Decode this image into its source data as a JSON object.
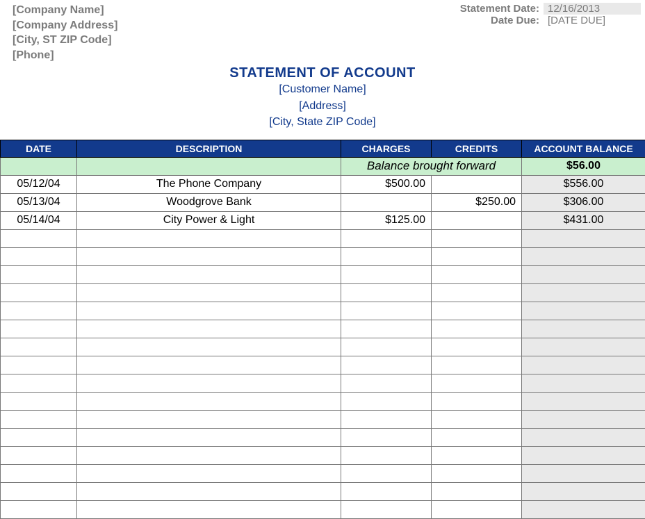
{
  "company": {
    "name": "[Company Name]",
    "address": "[Company Address]",
    "city_state_zip": "[City, ST  ZIP Code]",
    "phone": "[Phone]"
  },
  "meta": {
    "statement_date_label": "Statement Date:",
    "statement_date_value": "12/16/2013",
    "date_due_label": "Date Due:",
    "date_due_value": "[DATE DUE]"
  },
  "title": "STATEMENT OF ACCOUNT",
  "customer": {
    "name": "[Customer Name]",
    "address": "[Address]",
    "city_state_zip": "[City, State  ZIP Code]"
  },
  "table": {
    "columns": {
      "date": "DATE",
      "description": "DESCRIPTION",
      "charges": "CHARGES",
      "credits": "CREDITS",
      "balance": "ACCOUNT BALANCE"
    },
    "balance_forward_label": "Balance brought forward",
    "balance_forward_value": "$56.00",
    "rows": [
      {
        "date": "05/12/04",
        "description": "The Phone Company",
        "charges": "$500.00",
        "credits": "",
        "balance": "$556.00"
      },
      {
        "date": "05/13/04",
        "description": "Woodgrove Bank",
        "charges": "",
        "credits": "$250.00",
        "balance": "$306.00"
      },
      {
        "date": "05/14/04",
        "description": "City Power & Light",
        "charges": "$125.00",
        "credits": "",
        "balance": "$431.00"
      }
    ],
    "empty_row_count": 16,
    "colors": {
      "header_bg": "#123a8c",
      "header_fg": "#ffffff",
      "bf_row_bg": "#c9efce",
      "balance_col_bg": "#e9e9e9",
      "grid_line": "#777777"
    }
  }
}
